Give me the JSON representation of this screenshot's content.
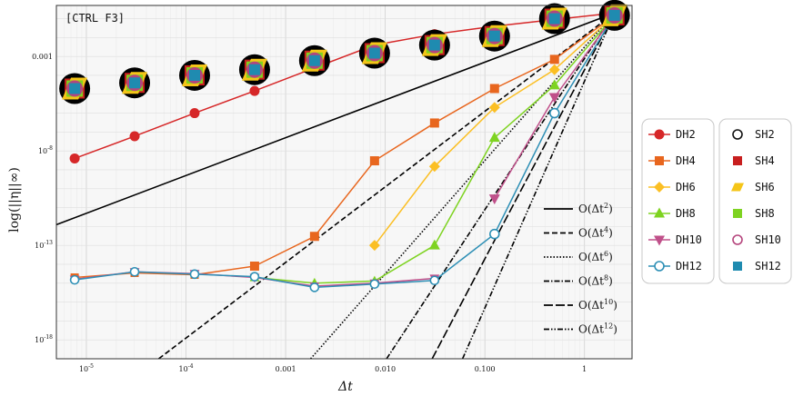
{
  "chart_data": {
    "type": "line",
    "corner_label": "[CTRL F3]",
    "xlabel": "Δt",
    "ylabel": "log(||η||∞)",
    "xscale": "log",
    "yscale": "log",
    "xlim": [
      5e-06,
      3
    ],
    "ylim": [
      1e-19,
      0.5
    ],
    "grid": true,
    "x_ticks": [
      {
        "value": 1e-05,
        "label": "10^-5"
      },
      {
        "value": 0.0001,
        "label": "10^-4"
      },
      {
        "value": 0.001,
        "label": "0.001"
      },
      {
        "value": 0.01,
        "label": "0.010"
      },
      {
        "value": 0.1,
        "label": "0.100"
      },
      {
        "value": 1,
        "label": "1"
      }
    ],
    "y_ticks": [
      {
        "value": 0.001,
        "label": "0.001"
      },
      {
        "value": 1e-08,
        "label": "10^-8"
      },
      {
        "value": 1e-13,
        "label": "10^-13"
      },
      {
        "value": 1e-18,
        "label": "10^-18"
      }
    ],
    "x": [
      7.63e-06,
      3.05e-05,
      0.000122,
      0.000488,
      0.00195,
      0.00781,
      0.03125,
      0.125,
      0.5,
      2
    ],
    "dh_series": [
      {
        "name": "DH2",
        "color": "#d62728",
        "marker": "circle",
        "points": [
          [
            7.63e-06,
            4e-09
          ],
          [
            3.05e-05,
            6e-08
          ],
          [
            0.000122,
            1e-06
          ],
          [
            0.000488,
            1.5e-05
          ],
          [
            0.00195,
            0.00025
          ],
          [
            0.00781,
            0.004
          ],
          [
            0.03125,
            0.015
          ],
          [
            0.125,
            0.04
          ],
          [
            0.5,
            0.09
          ],
          [
            2,
            0.2
          ]
        ]
      },
      {
        "name": "DH4",
        "color": "#e8661e",
        "marker": "square",
        "points": [
          [
            0.000488,
            8e-15
          ],
          [
            0.00195,
            3e-13
          ],
          [
            0.00781,
            3e-09
          ],
          [
            0.03125,
            3e-07
          ],
          [
            0.125,
            2e-05
          ],
          [
            0.5,
            0.0007
          ],
          [
            2,
            0.15
          ]
        ]
      },
      {
        "name": "DH6",
        "color": "#fbbf24",
        "marker": "diamond",
        "points": [
          [
            0.00781,
            1e-13
          ],
          [
            0.03125,
            1.5e-09
          ],
          [
            0.125,
            2e-06
          ],
          [
            0.5,
            0.0002
          ],
          [
            2,
            0.15
          ]
        ]
      },
      {
        "name": "DH8",
        "color": "#7ed321",
        "marker": "triangle-up",
        "points": [
          [
            0.03125,
            1e-13
          ],
          [
            0.125,
            5e-08
          ],
          [
            0.5,
            3e-05
          ],
          [
            2,
            0.15
          ]
        ]
      },
      {
        "name": "DH10",
        "color": "#c0508a",
        "marker": "triangle-down",
        "points": [
          [
            0.125,
            3e-11
          ],
          [
            0.5,
            7e-06
          ],
          [
            2,
            0.15
          ]
        ]
      },
      {
        "name": "DH12",
        "color": "#2d8fb5",
        "marker": "circle-open",
        "points": [
          [
            0.125,
            4e-13
          ],
          [
            0.5,
            1e-06
          ],
          [
            2,
            0.15
          ]
        ]
      }
    ],
    "low_cluster": [
      {
        "name": "DH4",
        "color": "#e8661e",
        "points": [
          [
            7.63e-06,
            2e-15
          ],
          [
            3.05e-05,
            3.5e-15
          ],
          [
            0.000122,
            2.8e-15
          ],
          [
            0.000488,
            8e-15
          ]
        ]
      },
      {
        "name": "DH8",
        "color": "#7ed321",
        "points": [
          [
            0.000488,
            2e-15
          ],
          [
            0.00195,
            1e-15
          ],
          [
            0.00781,
            1.3e-15
          ],
          [
            0.03125,
            1e-13
          ]
        ]
      },
      {
        "name": "DH10",
        "color": "#c0508a",
        "points": [
          [
            7.63e-06,
            1.6e-15
          ],
          [
            3.05e-05,
            4e-15
          ],
          [
            0.000122,
            3.2e-15
          ],
          [
            0.000488,
            2e-15
          ],
          [
            0.00195,
            7e-16
          ],
          [
            0.00781,
            1e-15
          ],
          [
            0.03125,
            1.8e-15
          ]
        ]
      },
      {
        "name": "DH12",
        "color": "#2d8fb5",
        "points": [
          [
            7.63e-06,
            1.5e-15
          ],
          [
            3.05e-05,
            4e-15
          ],
          [
            0.000122,
            3e-15
          ],
          [
            0.000488,
            2.2e-15
          ],
          [
            0.00195,
            6e-16
          ],
          [
            0.00781,
            9e-16
          ],
          [
            0.03125,
            1.4e-15
          ],
          [
            0.125,
            4e-13
          ]
        ]
      }
    ],
    "sh_series": [
      {
        "name": "SH2",
        "color": "#111111",
        "marker": "circle-open"
      },
      {
        "name": "SH4",
        "color": "#c81e1e",
        "marker": "square"
      },
      {
        "name": "SH6",
        "color": "#f5c518",
        "marker": "parallelogram"
      },
      {
        "name": "SH8",
        "color": "#7ed321",
        "marker": "square"
      },
      {
        "name": "SH10",
        "color": "#b5457d",
        "marker": "circle-open"
      },
      {
        "name": "SH12",
        "color": "#1f8bb0",
        "marker": "square"
      }
    ],
    "sh_points": [
      [
        7.63e-06,
        2e-05
      ],
      [
        3.05e-05,
        4e-05
      ],
      [
        0.000122,
        0.0001
      ],
      [
        0.000488,
        0.0002
      ],
      [
        0.00195,
        0.0006
      ],
      [
        0.00781,
        0.0015
      ],
      [
        0.03125,
        0.004
      ],
      [
        0.125,
        0.012
      ],
      [
        0.5,
        0.1
      ],
      [
        2,
        0.15
      ]
    ],
    "reference_lines": [
      {
        "label": "O(Δt^2)",
        "order": 2,
        "dash": "solid"
      },
      {
        "label": "O(Δt^4)",
        "order": 4,
        "dash": "6,3"
      },
      {
        "label": "O(Δt^6)",
        "order": 6,
        "dash": "1.5,2"
      },
      {
        "label": "O(Δt^8)",
        "order": 8,
        "dash": "6,2,1.5,2"
      },
      {
        "label": "O(Δt^10)",
        "order": 10,
        "dash": "10,3"
      },
      {
        "label": "O(Δt^12)",
        "order": 12,
        "dash": "6,2,1.5,2,1.5,2"
      }
    ],
    "reference_anchor": {
      "x": 2,
      "y": 0.2
    },
    "legend_dh_placement": "right",
    "legend_sh_placement": "right",
    "legend_ref_placement": "inside-bottom-right"
  }
}
